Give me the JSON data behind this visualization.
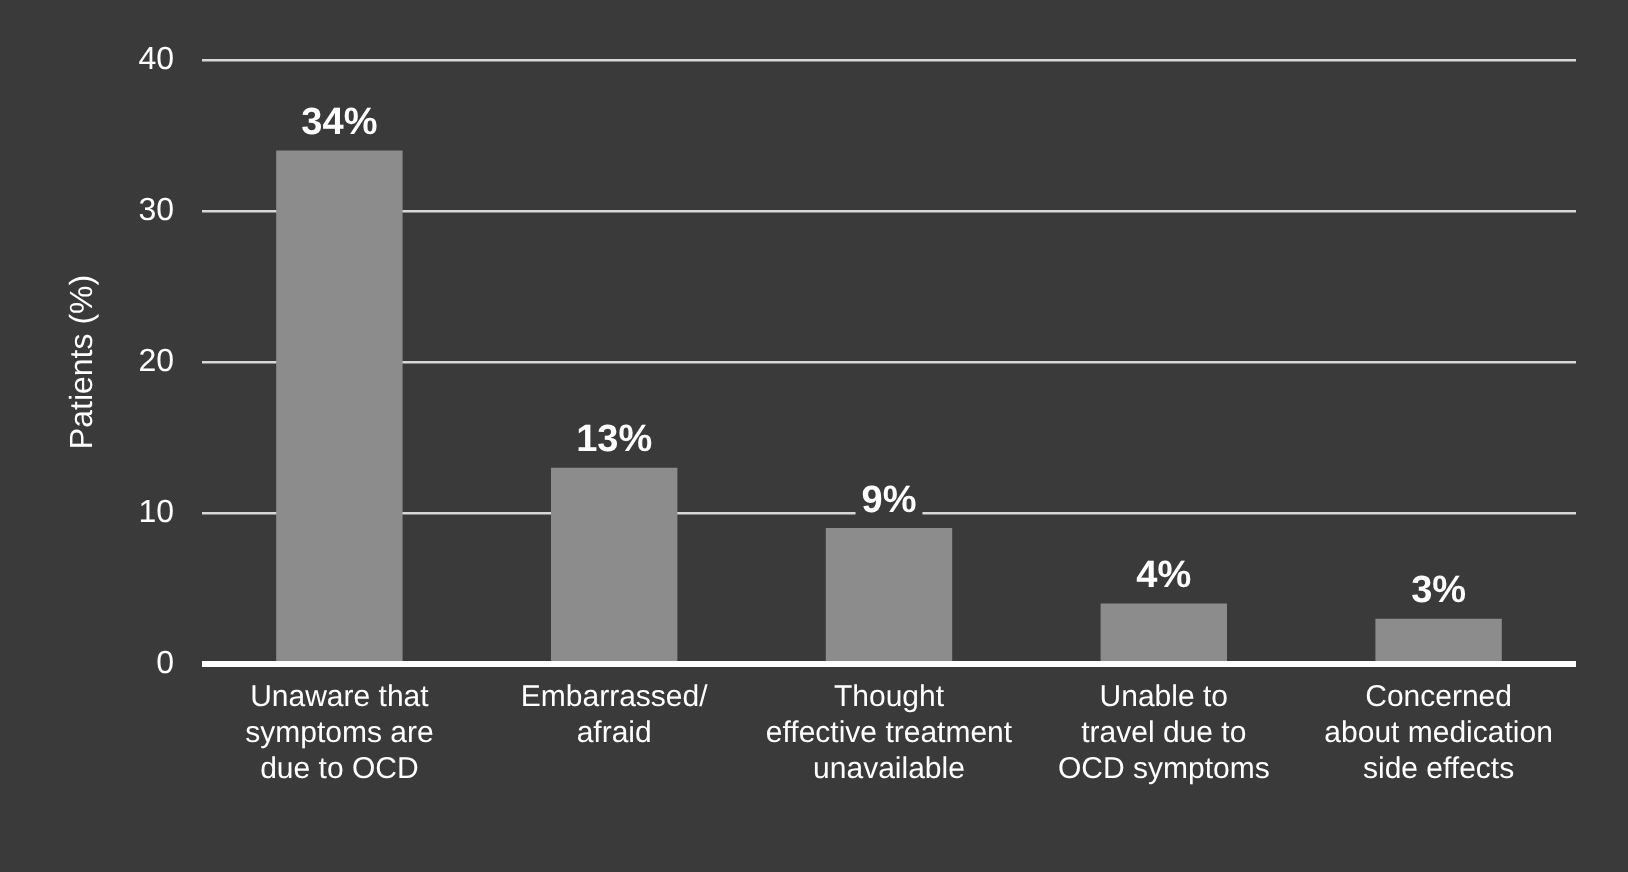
{
  "chart_data": {
    "type": "bar",
    "ylabel": "Patients (%)",
    "categories": [
      "Unaware that\nsymptoms are\ndue to OCD",
      "Embarrassed/\nafraid",
      "Thought\neffective treatment\nunavailable",
      "Unable to\ntravel due to\nOCD symptoms",
      "Concerned\nabout medication\nside effects"
    ],
    "values": [
      34,
      13,
      9,
      4,
      3
    ],
    "value_labels": [
      "34%",
      "13%",
      "9%",
      "4%",
      "3%"
    ],
    "color": "#8c8c8c",
    "ylim": [
      0,
      40
    ],
    "yticks": [
      0,
      10,
      20,
      30,
      40
    ],
    "grid": "y"
  }
}
